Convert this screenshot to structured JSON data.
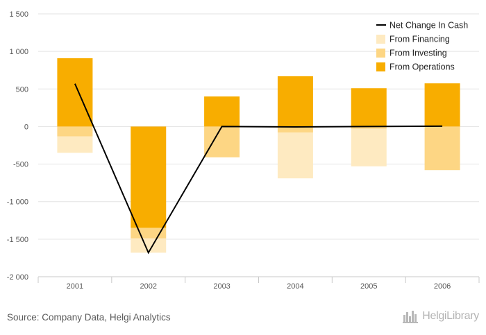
{
  "chart_data": {
    "type": "bar",
    "categories": [
      "2001",
      "2002",
      "2003",
      "2004",
      "2005",
      "2006"
    ],
    "series": [
      {
        "name": "From Operations",
        "type": "bar",
        "color": "#f8ad00",
        "values": [
          910,
          -1350,
          400,
          670,
          510,
          575
        ]
      },
      {
        "name": "From Investing",
        "type": "bar",
        "color": "#fdd684",
        "values": [
          -130,
          -140,
          -410,
          -80,
          -30,
          -580
        ]
      },
      {
        "name": "From Financing",
        "type": "bar",
        "color": "#feeac1",
        "values": [
          -220,
          -190,
          0,
          -610,
          -500,
          0
        ]
      },
      {
        "name": "Net Change In Cash",
        "type": "line",
        "color": "#000000",
        "values": [
          570,
          -1680,
          0,
          -5,
          0,
          5
        ]
      }
    ],
    "ylim": [
      -2000,
      1500
    ],
    "yticks": [
      1500,
      1000,
      500,
      0,
      -500,
      -1000,
      -1500,
      -2000
    ],
    "ytick_labels": [
      "1 500",
      "1 000",
      "500",
      "0",
      "-500",
      "-1 000",
      "-1 500",
      "-2 000"
    ],
    "legend": {
      "position": "top-right",
      "items": [
        "Net Change In Cash",
        "From Financing",
        "From Investing",
        "From Operations"
      ]
    },
    "grid": true
  },
  "footer": {
    "source": "Source: Company Data, Helgi Analytics",
    "logo_text": "HelgiLibrary",
    "logo_icon": "city-skyline-icon"
  }
}
